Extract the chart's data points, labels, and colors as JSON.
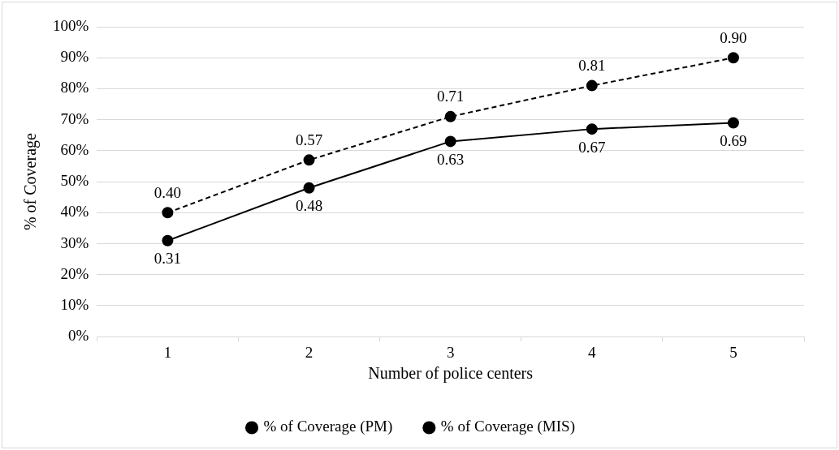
{
  "chart_data": {
    "type": "line",
    "xlabel": "Number of police centers",
    "ylabel": "% of Coverage",
    "categories": [
      "1",
      "2",
      "3",
      "4",
      "5"
    ],
    "series": [
      {
        "name": "% of Coverage (PM)",
        "color": "#000000",
        "line_style": "solid",
        "values": [
          0.31,
          0.48,
          0.63,
          0.67,
          0.69
        ],
        "value_labels": [
          "0.31",
          "0.48",
          "0.63",
          "0.67",
          "0.69"
        ]
      },
      {
        "name": "% of Coverage (MIS)",
        "color": "#000000",
        "line_style": "dashed",
        "values": [
          0.4,
          0.57,
          0.71,
          0.81,
          0.9
        ],
        "value_labels": [
          "0.40",
          "0.57",
          "0.71",
          "0.81",
          "0.90"
        ]
      }
    ],
    "ylim": [
      0,
      1
    ],
    "yticks": [
      {
        "value": 0,
        "label": "0%"
      },
      {
        "value": 0.1,
        "label": "10%"
      },
      {
        "value": 0.2,
        "label": "20%"
      },
      {
        "value": 0.3,
        "label": "30%"
      },
      {
        "value": 0.4,
        "label": "40%"
      },
      {
        "value": 0.5,
        "label": "50%"
      },
      {
        "value": 0.6,
        "label": "60%"
      },
      {
        "value": 0.7,
        "label": "70%"
      },
      {
        "value": 0.8,
        "label": "80%"
      },
      {
        "value": 0.9,
        "label": "90%"
      },
      {
        "value": 1,
        "label": "100%"
      }
    ],
    "grid": "y",
    "legend": "bottom",
    "marker": "circle"
  }
}
